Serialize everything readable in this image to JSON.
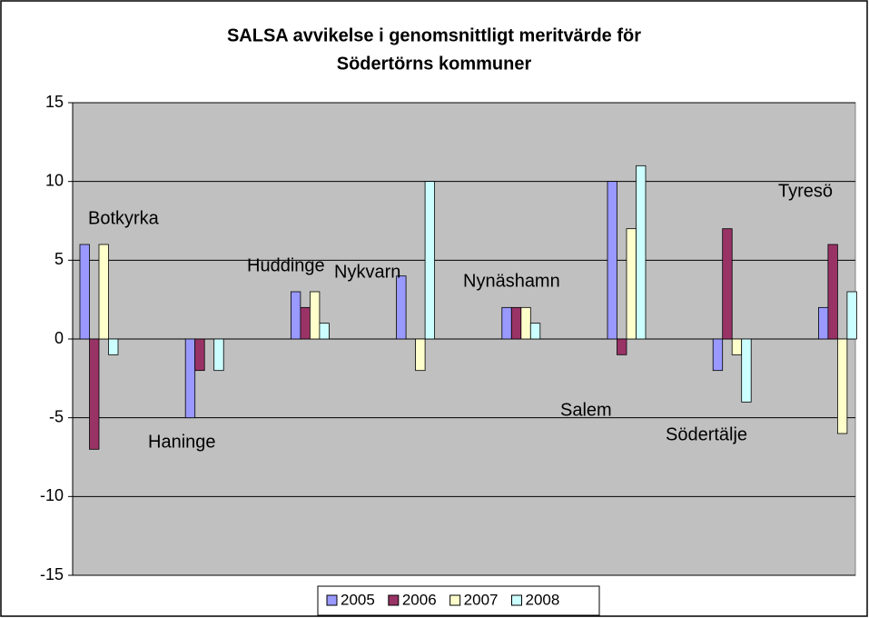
{
  "chart_data": {
    "type": "bar",
    "title": [
      "SALSA avvikelse i genomsnittligt meritvärde för",
      "Södertörns kommuner"
    ],
    "categories": [
      "Botkyrka",
      "Haninge",
      "Huddinge",
      "Nykvarn",
      "Nynäshamn",
      "Salem",
      "Södertälje",
      "Tyresö"
    ],
    "series": [
      {
        "name": "2005",
        "color": "#9999ff",
        "values": [
          6,
          -5,
          3,
          4,
          2,
          10,
          -2,
          2
        ]
      },
      {
        "name": "2006",
        "color": "#993366",
        "values": [
          -7,
          -2,
          2,
          0,
          2,
          -1,
          7,
          6
        ]
      },
      {
        "name": "2007",
        "color": "#ffffcc",
        "values": [
          6,
          0,
          3,
          -2,
          2,
          7,
          -1,
          -6
        ]
      },
      {
        "name": "2008",
        "color": "#ccffff",
        "values": [
          -1,
          -2,
          1,
          10,
          1,
          11,
          -4,
          3
        ]
      }
    ],
    "ylim": [
      -15,
      15
    ],
    "yticks": [
      -15,
      -10,
      -5,
      0,
      5,
      10,
      15
    ],
    "grid": true,
    "legend": "bottom"
  }
}
